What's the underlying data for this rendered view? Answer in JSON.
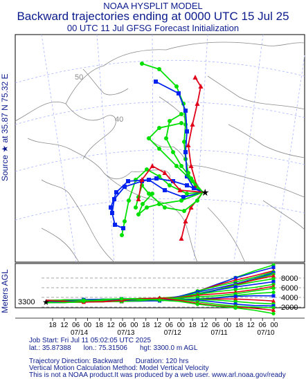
{
  "header": {
    "line1": "NOAA HYSPLIT MODEL",
    "line2": "Backward trajectories ending at 0000 UTC 15 Jul 25",
    "line3": "00 UTC 11 Jul    GFSG  Forecast Initialization"
  },
  "side_label": "Source ★ at  35.87 N  75.32 E",
  "map": {
    "lat_labels": [
      "50",
      "40"
    ],
    "ocean_color": "#ffffff",
    "coast_color": "#808080",
    "grid_color": "#aab4ff"
  },
  "source_marker": "★",
  "vertical": {
    "axis_label": "Meters AGL",
    "source_height": "3300",
    "y_ticks": [
      "8000",
      "6000",
      "4000",
      "2000"
    ],
    "x_ticks_hours": [
      "18",
      "12",
      "06",
      "00",
      "18",
      "12",
      "06",
      "00",
      "18",
      "12",
      "06",
      "00",
      "18",
      "12",
      "06",
      "00",
      "18",
      "12",
      "06",
      "00"
    ],
    "x_ticks_dates": [
      "07/14",
      "07/13",
      "07/12",
      "07/11",
      "07/10"
    ]
  },
  "series_colors": {
    "red": "#e0001a",
    "blue": "#0022ee",
    "green": "#00e000"
  },
  "footer": {
    "line1": "Job Start: Fri Jul 11 05:02:05 UTC 2025",
    "line2_lat": "lat.: 35.87388",
    "line2_lon": "lon.: 75.31506",
    "line2_hgt": "hgt: 3300.0 m AGL",
    "line3_dir": "Trajectory Direction: Backward",
    "line3_dur": "Duration: 120 hrs",
    "line4": "Vertical Motion Calculation Method: Model Vertical Velocity",
    "line5": "This is not a NOAA product.It was produced by a web user. www.arl.noaa.gov/ready"
  }
}
